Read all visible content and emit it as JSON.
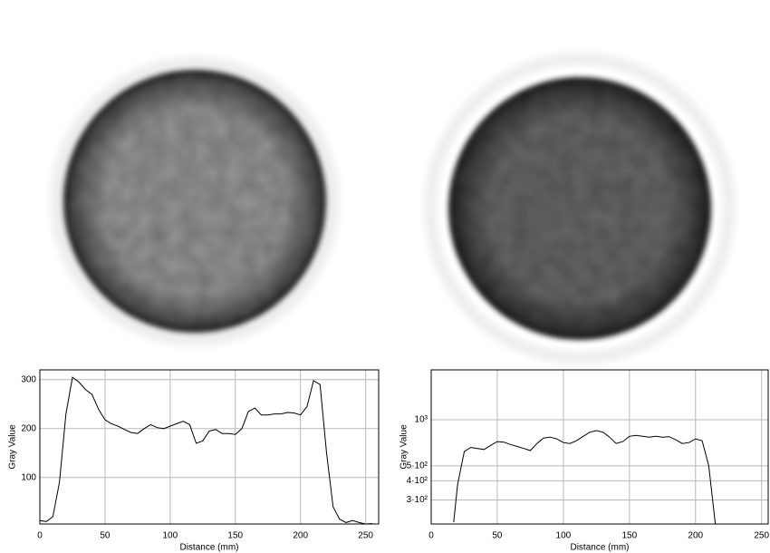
{
  "chart_data": [
    {
      "type": "line",
      "xlabel": "Distance (mm)",
      "ylabel": "Gray Value",
      "color": "#000000",
      "grid": true,
      "log_y": false,
      "x": [
        0,
        5,
        10,
        15,
        20,
        25,
        30,
        35,
        40,
        45,
        50,
        55,
        60,
        65,
        70,
        75,
        80,
        85,
        90,
        95,
        100,
        105,
        110,
        115,
        120,
        125,
        130,
        135,
        140,
        145,
        150,
        155,
        160,
        165,
        170,
        175,
        180,
        185,
        190,
        195,
        200,
        205,
        210,
        215,
        220,
        225,
        230,
        235,
        240,
        245,
        250,
        255
      ],
      "values": [
        12,
        10,
        20,
        90,
        230,
        305,
        295,
        280,
        270,
        240,
        218,
        210,
        205,
        198,
        192,
        190,
        200,
        208,
        202,
        200,
        205,
        210,
        215,
        208,
        170,
        175,
        195,
        198,
        190,
        190,
        188,
        200,
        235,
        242,
        228,
        228,
        230,
        230,
        233,
        232,
        228,
        245,
        298,
        290,
        150,
        40,
        15,
        8,
        12,
        8,
        5,
        6
      ],
      "xlim": [
        0,
        260
      ],
      "ylim": [
        5,
        320
      ],
      "xticks": [
        0,
        50,
        100,
        150,
        200,
        250
      ],
      "yticks": [
        100,
        200,
        300
      ]
    },
    {
      "type": "line",
      "xlabel": "Distance (mm)",
      "ylabel": "Gray Value",
      "color": "#000000",
      "grid": true,
      "log_y": true,
      "x": [
        17,
        20,
        25,
        30,
        35,
        40,
        45,
        50,
        55,
        60,
        65,
        70,
        75,
        80,
        85,
        90,
        95,
        100,
        105,
        110,
        115,
        120,
        125,
        130,
        135,
        140,
        145,
        150,
        155,
        160,
        165,
        170,
        175,
        180,
        185,
        190,
        195,
        200,
        205,
        210,
        215
      ],
      "values": [
        215,
        380,
        620,
        660,
        650,
        640,
        680,
        720,
        715,
        690,
        670,
        650,
        630,
        700,
        760,
        770,
        750,
        710,
        700,
        730,
        780,
        830,
        850,
        830,
        770,
        700,
        720,
        780,
        790,
        780,
        770,
        780,
        770,
        775,
        740,
        700,
        710,
        750,
        730,
        500,
        210
      ],
      "xlim": [
        0,
        255
      ],
      "ylim": [
        209,
        2115
      ],
      "xticks": [
        0,
        50,
        100,
        150,
        200,
        250
      ],
      "yticks": [
        {
          "value": 300,
          "label": "3·10²"
        },
        {
          "value": 400,
          "label": "4·10²"
        },
        {
          "value": 500,
          "label": "5·10²"
        },
        {
          "value": 1000,
          "label": "10³"
        }
      ]
    }
  ]
}
